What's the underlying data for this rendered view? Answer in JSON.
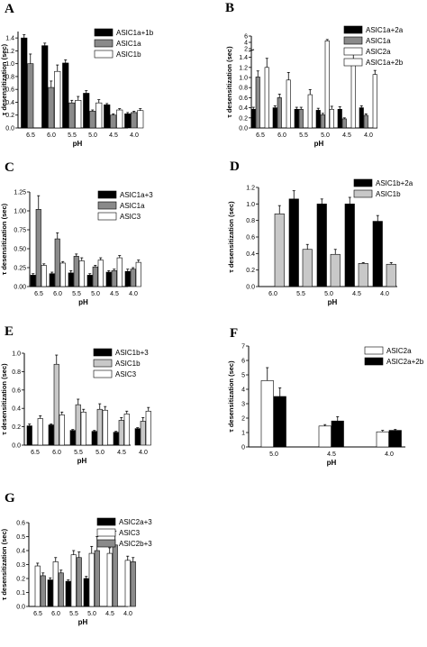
{
  "colors": {
    "black": "#000000",
    "gray": "#8a8a8a",
    "lightgray": "#c8c8c8",
    "white": "#ffffff"
  },
  "chart_data": [
    {
      "panel": "A",
      "type": "bar",
      "xlabel": "pH",
      "ylabel": "τ desensitization (sec)",
      "categories": [
        "6.5",
        "6.0",
        "5.5",
        "5.0",
        "4.5",
        "4.0"
      ],
      "ylim": [
        0,
        1.5
      ],
      "yticks": [
        0.0,
        0.2,
        0.4,
        0.6,
        0.8,
        1.0,
        1.2,
        1.4
      ],
      "yticklabels": [
        "0.0",
        "0.2",
        "0.4",
        "0.6",
        "0.8",
        "1.0",
        "1.2",
        "1.4"
      ],
      "series": [
        {
          "name": "ASIC1a+1b",
          "color": "black",
          "values": [
            1.4,
            1.28,
            1.01,
            0.54,
            0.36,
            0.22
          ],
          "errors": [
            0.05,
            0.04,
            0.05,
            0.04,
            0.02,
            0.02
          ]
        },
        {
          "name": "ASIC1a",
          "color": "gray",
          "values": [
            1.0,
            0.63,
            0.39,
            0.26,
            0.2,
            0.24
          ],
          "errors": [
            0.15,
            0.1,
            0.04,
            0.02,
            0.02,
            0.02
          ]
        },
        {
          "name": "ASIC1b",
          "color": "white",
          "values": [
            0.0,
            0.88,
            0.43,
            0.39,
            0.28,
            0.27
          ],
          "errors": [
            0.0,
            0.1,
            0.06,
            0.05,
            0.02,
            0.03
          ]
        }
      ],
      "legend_position": "top-right"
    },
    {
      "panel": "B",
      "type": "bar",
      "xlabel": "pH",
      "ylabel": "τ desensitization (sec)",
      "categories": [
        "6.5",
        "6.0",
        "5.5",
        "5.0",
        "4.5",
        "4.0"
      ],
      "ylim": [
        0,
        6
      ],
      "yticks": [
        0.0,
        0.2,
        0.4,
        0.6,
        0.8,
        1.0,
        1.2,
        1.4,
        2,
        4,
        6
      ],
      "yticklabels": [
        "0.0",
        "0.2",
        "0.4",
        "0.6",
        "0.8",
        "1.0",
        "1.2",
        "1.4",
        "2",
        "4",
        "6"
      ],
      "axis_break": [
        1.5,
        1.9
      ],
      "series": [
        {
          "name": "ASIC1a+2a",
          "color": "black",
          "values": [
            0.37,
            0.4,
            0.37,
            0.35,
            0.37,
            0.4
          ],
          "errors": [
            0.04,
            0.04,
            0.04,
            0.04,
            0.05,
            0.04
          ]
        },
        {
          "name": "ASIC1a",
          "color": "gray",
          "values": [
            1.01,
            0.6,
            0.37,
            0.26,
            0.18,
            0.25
          ],
          "errors": [
            0.12,
            0.07,
            0.04,
            0.03,
            0.02,
            0.03
          ]
        },
        {
          "name": "ASIC2a",
          "color": "white",
          "values": [
            0.0,
            0.0,
            0.0,
            4.5,
            0.0,
            0.0
          ],
          "errors": [
            0.0,
            0.0,
            0.0,
            0.4,
            0.0,
            0.0
          ]
        },
        {
          "name": "ASIC1a+2b",
          "color": "white",
          "values": [
            1.2,
            0.95,
            0.66,
            0.37,
            1.36,
            1.06
          ],
          "errors": [
            0.18,
            0.15,
            0.1,
            0.06,
            0.1,
            0.08
          ]
        }
      ],
      "legend_position": "top-right"
    },
    {
      "panel": "C",
      "type": "bar",
      "xlabel": "pH",
      "ylabel": "τ desensitization (sec)",
      "categories": [
        "6.5",
        "6.0",
        "5.5",
        "5.0",
        "4.5",
        "4.0"
      ],
      "ylim": [
        0,
        1.25
      ],
      "yticks": [
        0.0,
        0.25,
        0.5,
        0.75,
        1.0,
        1.25
      ],
      "yticklabels": [
        "0.00",
        "0.25",
        "0.50",
        "0.75",
        "1.00",
        "1.25"
      ],
      "series": [
        {
          "name": "ASIC1a+3",
          "color": "black",
          "values": [
            0.15,
            0.17,
            0.18,
            0.15,
            0.19,
            0.2
          ],
          "errors": [
            0.02,
            0.02,
            0.03,
            0.02,
            0.02,
            0.03
          ]
        },
        {
          "name": "ASIC1a",
          "color": "gray",
          "values": [
            1.02,
            0.63,
            0.4,
            0.26,
            0.21,
            0.23
          ],
          "errors": [
            0.18,
            0.08,
            0.03,
            0.02,
            0.02,
            0.02
          ]
        },
        {
          "name": "ASIC3",
          "color": "white",
          "values": [
            0.28,
            0.31,
            0.34,
            0.35,
            0.38,
            0.32
          ],
          "errors": [
            0.02,
            0.02,
            0.04,
            0.03,
            0.03,
            0.03
          ]
        }
      ],
      "legend_position": "top-right"
    },
    {
      "panel": "D",
      "type": "bar",
      "xlabel": "pH",
      "ylabel": "τ desensitization (sec)",
      "categories": [
        "6.0",
        "5.5",
        "5.0",
        "4.5",
        "4.0"
      ],
      "ylim": [
        0,
        1.2
      ],
      "yticks": [
        0.0,
        0.2,
        0.4,
        0.6,
        0.8,
        1.0,
        1.2
      ],
      "yticklabels": [
        "0.0",
        "0.2",
        "0.4",
        "0.6",
        "0.8",
        "1.0",
        "1.2"
      ],
      "series": [
        {
          "name": "ASIC1b+2a",
          "color": "black",
          "values": [
            0.0,
            1.06,
            1.0,
            1.0,
            0.79
          ],
          "errors": [
            0.0,
            0.1,
            0.06,
            0.08,
            0.07
          ]
        },
        {
          "name": "ASIC1b",
          "color": "lightgray",
          "values": [
            0.88,
            0.45,
            0.39,
            0.28,
            0.27
          ],
          "errors": [
            0.1,
            0.06,
            0.06,
            0.01,
            0.02
          ]
        }
      ],
      "legend_position": "top-right"
    },
    {
      "panel": "E",
      "type": "bar",
      "xlabel": "pH",
      "ylabel": "τ desensitization (sec)",
      "categories": [
        "6.5",
        "6.0",
        "5.5",
        "5.0",
        "4.5",
        "4.0"
      ],
      "ylim": [
        0,
        1.0
      ],
      "yticks": [
        0.0,
        0.2,
        0.4,
        0.6,
        0.8,
        1.0
      ],
      "yticklabels": [
        "0.0",
        "0.2",
        "0.4",
        "0.6",
        "0.8",
        "1.0"
      ],
      "series": [
        {
          "name": "ASIC1b+3",
          "color": "black",
          "values": [
            0.21,
            0.22,
            0.16,
            0.15,
            0.14,
            0.18
          ],
          "errors": [
            0.02,
            0.01,
            0.01,
            0.01,
            0.01,
            0.01
          ]
        },
        {
          "name": "ASIC1b",
          "color": "lightgray",
          "values": [
            0.0,
            0.88,
            0.44,
            0.39,
            0.27,
            0.26
          ],
          "errors": [
            0.0,
            0.1,
            0.06,
            0.06,
            0.03,
            0.04
          ]
        },
        {
          "name": "ASIC3",
          "color": "white",
          "values": [
            0.29,
            0.33,
            0.36,
            0.38,
            0.34,
            0.37
          ],
          "errors": [
            0.03,
            0.03,
            0.03,
            0.04,
            0.03,
            0.04
          ]
        }
      ],
      "legend_position": "top-right"
    },
    {
      "panel": "F",
      "type": "bar",
      "xlabel": "pH",
      "ylabel": "τ desensitization (sec)",
      "categories": [
        "5.0",
        "4.5",
        "4.0"
      ],
      "ylim": [
        0,
        7
      ],
      "yticks": [
        0,
        1,
        2,
        3,
        4,
        5,
        6,
        7
      ],
      "yticklabels": [
        "0",
        "1",
        "2",
        "3",
        "4",
        "5",
        "6",
        "7"
      ],
      "series": [
        {
          "name": "ASIC2a",
          "color": "white",
          "values": [
            4.6,
            1.45,
            1.05
          ],
          "errors": [
            0.9,
            0.1,
            0.1
          ]
        },
        {
          "name": "ASIC2a+2b",
          "color": "black",
          "values": [
            3.5,
            1.8,
            1.15
          ],
          "errors": [
            0.6,
            0.3,
            0.06
          ]
        }
      ],
      "legend_position": "top-right"
    },
    {
      "panel": "G",
      "type": "bar",
      "xlabel": "pH",
      "ylabel": "τ desensitization (sec)",
      "categories": [
        "6.5",
        "6.0",
        "5.5",
        "5.0",
        "4.5",
        "4.0"
      ],
      "ylim": [
        0,
        0.6
      ],
      "yticks": [
        0.0,
        0.1,
        0.2,
        0.3,
        0.4,
        0.5,
        0.6
      ],
      "yticklabels": [
        "0.0",
        "0.1",
        "0.2",
        "0.3",
        "0.4",
        "0.5",
        "0.6"
      ],
      "series": [
        {
          "name": "ASIC2a+3",
          "color": "black",
          "values": [
            0.0,
            0.19,
            0.18,
            0.2,
            0.0,
            0.0
          ],
          "errors": [
            0.0,
            0.015,
            0.01,
            0.015,
            0.0,
            0.0
          ]
        },
        {
          "name": "ASIC3",
          "color": "white",
          "values": [
            0.29,
            0.32,
            0.37,
            0.38,
            0.38,
            0.33
          ],
          "errors": [
            0.02,
            0.03,
            0.03,
            0.05,
            0.04,
            0.03
          ]
        },
        {
          "name": "ASIC2b+3",
          "color": "gray",
          "values": [
            0.22,
            0.24,
            0.35,
            0.4,
            0.44,
            0.32
          ],
          "errors": [
            0.02,
            0.02,
            0.04,
            0.1,
            0.1,
            0.03
          ]
        }
      ],
      "legend_position": "top-right"
    }
  ]
}
